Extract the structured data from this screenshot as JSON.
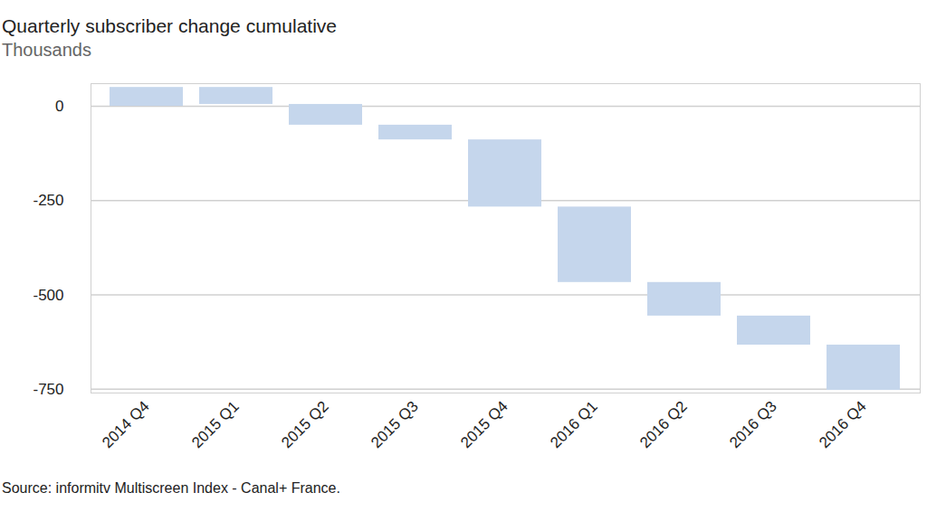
{
  "chart_data": {
    "type": "waterfall",
    "title": "Quarterly subscriber change cumulative",
    "subtitle": "Thousands",
    "source": "Source: informitv Multiscreen Index - Canal+ France.",
    "categories": [
      "2014 Q4",
      "2015 Q1",
      "2015 Q2",
      "2015 Q3",
      "2015 Q4",
      "2016 Q1",
      "2016 Q2",
      "2016 Q3",
      "2016 Q4"
    ],
    "values": [
      50,
      -45,
      -55,
      -39,
      -178,
      -200,
      -89,
      -77,
      -120
    ],
    "color": "#c5d6ec",
    "ylim": [
      -760,
      60
    ],
    "yticks": [
      0,
      -250,
      -500,
      -750
    ],
    "grid": true
  }
}
